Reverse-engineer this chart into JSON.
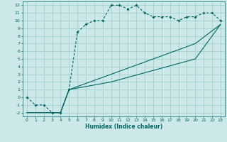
{
  "title": "",
  "xlabel": "Humidex (Indice chaleur)",
  "background_color": "#cce8e8",
  "grid_color": "#99cccc",
  "line_color": "#006666",
  "xlim": [
    -0.5,
    23.5
  ],
  "ylim": [
    -2.5,
    12.5
  ],
  "xticks": [
    0,
    1,
    2,
    3,
    4,
    5,
    6,
    7,
    8,
    9,
    10,
    11,
    12,
    13,
    14,
    15,
    16,
    17,
    18,
    19,
    20,
    21,
    22,
    23
  ],
  "yticks": [
    -2,
    -1,
    0,
    1,
    2,
    3,
    4,
    5,
    6,
    7,
    8,
    9,
    10,
    11,
    12
  ],
  "line1_x": [
    0,
    1,
    2,
    3,
    4,
    5,
    6,
    7,
    8,
    9,
    10,
    11,
    12,
    13,
    14,
    15,
    16,
    17,
    18,
    19,
    20,
    21,
    22,
    23
  ],
  "line1_y": [
    0,
    -1,
    -1,
    -2,
    -2,
    1,
    8.5,
    9.5,
    10,
    10,
    12,
    12,
    11.5,
    12,
    11,
    10.5,
    10.5,
    10.5,
    10,
    10.5,
    10.5,
    11,
    11,
    10
  ],
  "line2_x": [
    0,
    4,
    5,
    10,
    15,
    20,
    23
  ],
  "line2_y": [
    -2,
    -2,
    1,
    2,
    3.5,
    5,
    9.5
  ],
  "line3_x": [
    0,
    4,
    5,
    10,
    15,
    20,
    23
  ],
  "line3_y": [
    -2,
    -2,
    1,
    3,
    5,
    7,
    9.5
  ],
  "marker_size": 2.0,
  "line_width": 0.8,
  "tick_fontsize": 4.5,
  "xlabel_fontsize": 5.5
}
